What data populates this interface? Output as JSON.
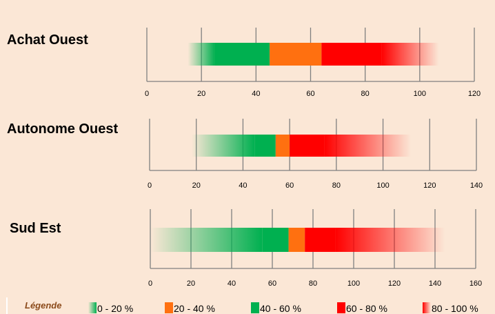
{
  "chart_data": [
    {
      "type": "bar",
      "orientation": "horizontal-stacked",
      "title": "Achat Ouest",
      "xlim": [
        0,
        120
      ],
      "ticks": [
        0,
        20,
        40,
        60,
        80,
        100,
        120
      ],
      "segments": [
        {
          "band": "0 - 20 %",
          "from": 15,
          "to": 25
        },
        {
          "band": "40 - 60 %",
          "from": 25,
          "to": 45
        },
        {
          "band": "20 - 40 %",
          "from": 45,
          "to": 64
        },
        {
          "band": "60 - 80 %",
          "from": 64,
          "to": 86
        },
        {
          "band": "80 - 100 %",
          "from": 86,
          "to": 107
        }
      ]
    },
    {
      "type": "bar",
      "orientation": "horizontal-stacked",
      "title": "Autonome Ouest",
      "xlim": [
        0,
        140
      ],
      "ticks": [
        0,
        20,
        40,
        60,
        80,
        100,
        120,
        140
      ],
      "segments": [
        {
          "band": "0 - 20 %",
          "from": 18,
          "to": 45
        },
        {
          "band": "40 - 60 %",
          "from": 45,
          "to": 54
        },
        {
          "band": "20 - 40 %",
          "from": 54,
          "to": 60
        },
        {
          "band": "60 - 80 %",
          "from": 60,
          "to": 75
        },
        {
          "band": "80 - 100 %",
          "from": 75,
          "to": 112
        }
      ]
    },
    {
      "type": "bar",
      "orientation": "horizontal-stacked",
      "title": "Sud Est",
      "xlim": [
        0,
        160
      ],
      "ticks": [
        0,
        20,
        40,
        60,
        80,
        100,
        120,
        140,
        160
      ],
      "segments": [
        {
          "band": "0 - 20 %",
          "from": 0,
          "to": 55
        },
        {
          "band": "40 - 60 %",
          "from": 55,
          "to": 68
        },
        {
          "band": "20 - 40 %",
          "from": 68,
          "to": 76
        },
        {
          "band": "60 - 80 %",
          "from": 76,
          "to": 91
        },
        {
          "band": "80 - 100 %",
          "from": 91,
          "to": 145
        }
      ]
    }
  ],
  "legend": {
    "title": "Légende",
    "items": [
      {
        "label": "0 - 20 %",
        "color": "#00b050",
        "style": "gradient"
      },
      {
        "label": "20 - 40 %",
        "color": "#ff7010"
      },
      {
        "label": "40 - 60 %",
        "color": "#00b050"
      },
      {
        "label": "60 - 80 %",
        "color": "#ff0000"
      },
      {
        "label": "80 - 100 %",
        "color": "#ff0000",
        "style": "gradient"
      }
    ]
  },
  "colors": {
    "background": "#fbe7d6",
    "axis": "#7f7f7f",
    "green": "#00b050",
    "orange": "#ff7010",
    "red": "#ff0000"
  }
}
